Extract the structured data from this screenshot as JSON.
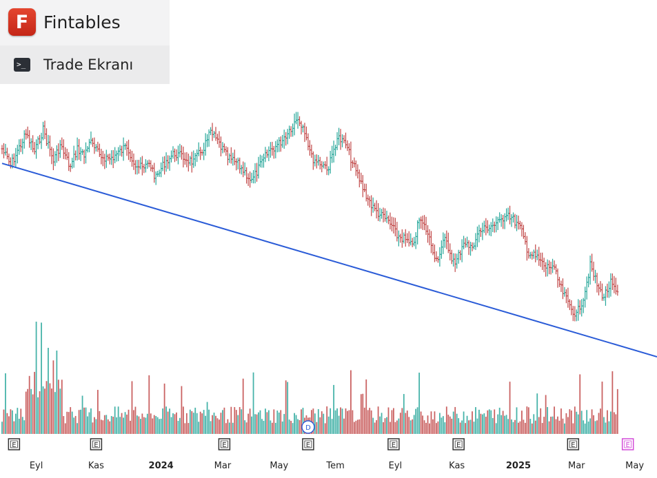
{
  "brand": {
    "logo_letter": "F",
    "name": "Fintables",
    "subtitle": "Trade Ekranı",
    "subtitle_icon": "terminal-icon"
  },
  "colors": {
    "up": "#26a69a",
    "down": "#c14747",
    "trend": "#2a5bd7",
    "marker": "#333333",
    "marker_future": "#d24ad8",
    "marker_dividend": "#2a5bd7"
  },
  "chart_data": {
    "type": "bar",
    "subtype": "ohlc",
    "title": "",
    "xlabel": "",
    "ylabel": "",
    "x_ticks": [
      {
        "label": "Eyl",
        "index": 20,
        "bold": false
      },
      {
        "label": "Kas",
        "index": 55,
        "bold": false
      },
      {
        "label": "2024",
        "index": 93,
        "bold": true
      },
      {
        "label": "Mar",
        "index": 129,
        "bold": false
      },
      {
        "label": "May",
        "index": 162,
        "bold": false
      },
      {
        "label": "Tem",
        "index": 195,
        "bold": false
      },
      {
        "label": "Eyl",
        "index": 230,
        "bold": false
      },
      {
        "label": "Kas",
        "index": 266,
        "bold": false
      },
      {
        "label": "2025",
        "index": 302,
        "bold": true
      },
      {
        "label": "Mar",
        "index": 336,
        "bold": false
      },
      {
        "label": "May",
        "index": 370,
        "bold": false
      }
    ],
    "price_anchors": [
      [
        0,
        63
      ],
      [
        5,
        86
      ],
      [
        9,
        66
      ],
      [
        14,
        43
      ],
      [
        19,
        67
      ],
      [
        24,
        36
      ],
      [
        30,
        79
      ],
      [
        34,
        58
      ],
      [
        40,
        89
      ],
      [
        44,
        62
      ],
      [
        48,
        73
      ],
      [
        51,
        52
      ],
      [
        57,
        72
      ],
      [
        63,
        77
      ],
      [
        68,
        69
      ],
      [
        73,
        59
      ],
      [
        78,
        85
      ],
      [
        83,
        91
      ],
      [
        86,
        81
      ],
      [
        90,
        104
      ],
      [
        95,
        82
      ],
      [
        101,
        69
      ],
      [
        106,
        75
      ],
      [
        112,
        81
      ],
      [
        118,
        61
      ],
      [
        122,
        40
      ],
      [
        127,
        56
      ],
      [
        132,
        76
      ],
      [
        137,
        82
      ],
      [
        142,
        95
      ],
      [
        146,
        108
      ],
      [
        151,
        86
      ],
      [
        156,
        66
      ],
      [
        162,
        56
      ],
      [
        167,
        40
      ],
      [
        173,
        20
      ],
      [
        177,
        36
      ],
      [
        181,
        75
      ],
      [
        186,
        82
      ],
      [
        191,
        89
      ],
      [
        196,
        47
      ],
      [
        201,
        57
      ],
      [
        206,
        89
      ],
      [
        212,
        122
      ],
      [
        217,
        145
      ],
      [
        222,
        156
      ],
      [
        226,
        163
      ],
      [
        231,
        183
      ],
      [
        235,
        187
      ],
      [
        240,
        199
      ],
      [
        244,
        161
      ],
      [
        248,
        174
      ],
      [
        254,
        216
      ],
      [
        259,
        189
      ],
      [
        265,
        224
      ],
      [
        270,
        190
      ],
      [
        274,
        201
      ],
      [
        279,
        178
      ],
      [
        285,
        170
      ],
      [
        291,
        165
      ],
      [
        295,
        150
      ],
      [
        299,
        161
      ],
      [
        303,
        172
      ],
      [
        308,
        207
      ],
      [
        313,
        214
      ],
      [
        318,
        227
      ],
      [
        322,
        225
      ],
      [
        327,
        257
      ],
      [
        331,
        276
      ],
      [
        336,
        293
      ],
      [
        340,
        268
      ],
      [
        344,
        225
      ],
      [
        349,
        257
      ],
      [
        352,
        267
      ],
      [
        356,
        249
      ],
      [
        360,
        266
      ]
    ],
    "volume": {
      "baseline": 630,
      "peak_index": 20,
      "note": "daily volume histogram, colored by candle direction"
    },
    "trendline": {
      "from_index": 0,
      "from_price": 83,
      "to_index": 380,
      "to_price": 308,
      "color": "#2a5bd7"
    },
    "event_markers": [
      {
        "label": "E",
        "index": 7,
        "type": "earnings"
      },
      {
        "label": "E",
        "index": 55,
        "type": "earnings"
      },
      {
        "label": "E",
        "index": 130,
        "type": "earnings"
      },
      {
        "label": "E",
        "index": 179,
        "type": "earnings"
      },
      {
        "label": "D",
        "index": 179,
        "type": "dividend"
      },
      {
        "label": "E",
        "index": 229,
        "type": "earnings"
      },
      {
        "label": "E",
        "index": 267,
        "type": "earnings"
      },
      {
        "label": "E",
        "index": 334,
        "type": "earnings"
      },
      {
        "label": "E",
        "index": 366,
        "type": "future-earnings"
      }
    ],
    "grid": false,
    "legend": "none"
  }
}
